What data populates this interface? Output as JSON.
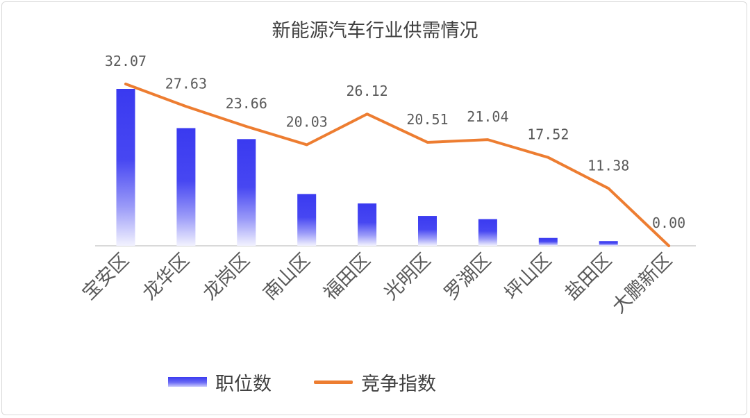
{
  "chart_data": {
    "type": "bar",
    "title": "新能源汽车行业供需情况",
    "categories": [
      "宝安区",
      "龙华区",
      "龙岗区",
      "南山区",
      "福田区",
      "光明区",
      "罗湖区",
      "坪山区",
      "盐田区",
      "大鹏新区"
    ],
    "series": [
      {
        "name": "职位数",
        "type": "bar",
        "color": "#3b3bf0",
        "values": [
          100,
          75,
          68,
          33,
          27,
          19,
          17,
          5,
          3,
          0
        ]
      },
      {
        "name": "竞争指数",
        "type": "line",
        "color": "#ed7d31",
        "values": [
          32.07,
          27.63,
          23.66,
          20.03,
          26.12,
          20.51,
          21.04,
          17.52,
          11.38,
          0.0
        ],
        "labels": [
          "32.07",
          "27.63",
          "23.66",
          "20.03",
          "26.12",
          "20.51",
          "21.04",
          "17.52",
          "11.38",
          "0.00"
        ]
      }
    ],
    "legend_position": "bottom",
    "grid": false
  }
}
